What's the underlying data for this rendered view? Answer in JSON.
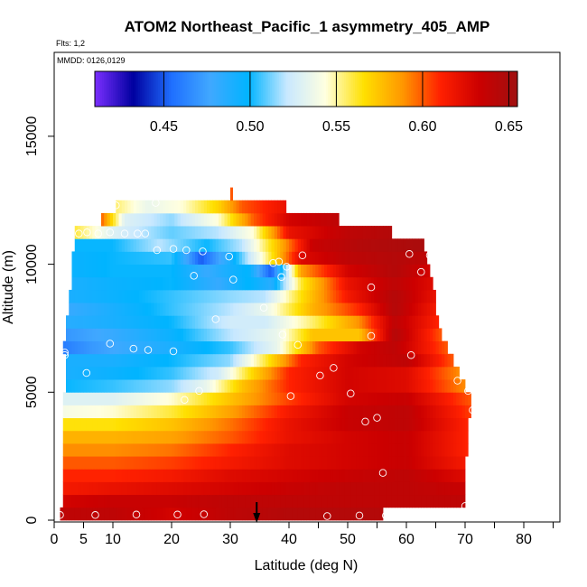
{
  "chart_data": {
    "type": "heatmap",
    "title": "ATOM2 Northeast_Pacific_1 asymmetry_405_AMP",
    "annotations": {
      "flights": "Flts: 1,2",
      "dates": "MMDD: 0126,0129"
    },
    "xlabel": "Latitude (deg N)",
    "ylabel": "Altitude (m)",
    "xlim": [
      0,
      85
    ],
    "ylim": [
      0,
      17500
    ],
    "x_ticks": [
      0,
      5,
      10,
      20,
      30,
      40,
      50,
      60,
      70,
      80
    ],
    "x_tick_labels": [
      "0",
      "5",
      "10",
      "20",
      "30",
      "40",
      "50",
      "60",
      "70",
      "80"
    ],
    "x_minor_ticks": [
      45,
      55,
      65,
      75,
      85
    ],
    "y_ticks": [
      0,
      5000,
      10000,
      15000
    ],
    "y_tick_labels": [
      "0",
      "5000",
      "10000",
      "15000"
    ],
    "colorbar": {
      "min": 0.41,
      "max": 0.655,
      "ticks": [
        0.45,
        0.5,
        0.55,
        0.6,
        0.65
      ],
      "tick_labels": [
        "0.45",
        "0.50",
        "0.55",
        "0.60",
        "0.65"
      ],
      "colors": [
        "#7b2fff",
        "#0000a0",
        "#1f6fff",
        "#40a8ff",
        "#00b4ff",
        "#c8e8ff",
        "#ffffe0",
        "#ffe000",
        "#ff9800",
        "#ff2000",
        "#cc0000",
        "#a01010"
      ],
      "colors_note": "dark purple -> dark blue -> blue -> light blue -> white -> yellow -> orange -> red -> dark red"
    },
    "marker": {
      "type": "arrow-down",
      "x": 34.5,
      "note": "black arrow at bottom"
    },
    "bands": [
      {
        "alt": 250,
        "lat_min": 1,
        "lat_max": 56,
        "lat": [
          1,
          10,
          20,
          30,
          40,
          50,
          56
        ],
        "val": [
          0.64,
          0.64,
          0.63,
          0.64,
          0.645,
          0.645,
          0.645
        ]
      },
      {
        "alt": 750,
        "lat_min": 1.5,
        "lat_max": 70,
        "lat": [
          1.5,
          10,
          20,
          30,
          40,
          50,
          60,
          70
        ],
        "val": [
          0.63,
          0.635,
          0.635,
          0.64,
          0.64,
          0.64,
          0.64,
          0.64
        ]
      },
      {
        "alt": 1250,
        "lat_min": 1.5,
        "lat_max": 70,
        "lat": [
          1.5,
          10,
          20,
          30,
          40,
          50,
          60,
          70
        ],
        "val": [
          0.615,
          0.62,
          0.625,
          0.63,
          0.635,
          0.64,
          0.64,
          0.635
        ]
      },
      {
        "alt": 1750,
        "lat_min": 1.5,
        "lat_max": 70,
        "lat": [
          1.5,
          10,
          20,
          30,
          40,
          50,
          60,
          70
        ],
        "val": [
          0.61,
          0.61,
          0.615,
          0.625,
          0.63,
          0.635,
          0.64,
          0.625
        ]
      },
      {
        "alt": 2250,
        "lat_min": 1.5,
        "lat_max": 70,
        "lat": [
          1.5,
          10,
          20,
          30,
          40,
          50,
          60,
          70
        ],
        "val": [
          0.6,
          0.6,
          0.605,
          0.615,
          0.625,
          0.63,
          0.635,
          0.615
        ]
      },
      {
        "alt": 2750,
        "lat_min": 1.5,
        "lat_max": 70.5,
        "lat": [
          1.5,
          10,
          20,
          30,
          40,
          50,
          60,
          70.5
        ],
        "val": [
          0.59,
          0.59,
          0.595,
          0.61,
          0.625,
          0.63,
          0.635,
          0.61
        ]
      },
      {
        "alt": 3250,
        "lat_min": 1.5,
        "lat_max": 70.5,
        "lat": [
          1.5,
          10,
          20,
          30,
          40,
          50,
          60,
          70.5
        ],
        "val": [
          0.58,
          0.58,
          0.585,
          0.6,
          0.62,
          0.63,
          0.635,
          0.61
        ]
      },
      {
        "alt": 3750,
        "lat_min": 1.5,
        "lat_max": 70.5,
        "lat": [
          1.5,
          10,
          20,
          30,
          40,
          50,
          60,
          70.5
        ],
        "val": [
          0.565,
          0.565,
          0.575,
          0.595,
          0.62,
          0.635,
          0.64,
          0.61
        ]
      },
      {
        "alt": 4250,
        "lat_min": 1.5,
        "lat_max": 71,
        "lat": [
          1.5,
          10,
          20,
          30,
          40,
          50,
          60,
          71
        ],
        "val": [
          0.54,
          0.545,
          0.56,
          0.585,
          0.615,
          0.635,
          0.64,
          0.605
        ]
      },
      {
        "alt": 4750,
        "lat_min": 1.5,
        "lat_max": 71,
        "lat": [
          1.5,
          10,
          20,
          30,
          40,
          50,
          60,
          71
        ],
        "val": [
          0.53,
          0.53,
          0.545,
          0.575,
          0.605,
          0.63,
          0.635,
          0.6
        ]
      },
      {
        "alt": 5250,
        "lat_min": 2,
        "lat_max": 70,
        "lat": [
          2,
          10,
          20,
          26,
          32,
          40,
          50,
          60,
          70
        ],
        "val": [
          0.5,
          0.505,
          0.515,
          0.535,
          0.575,
          0.61,
          0.63,
          0.625,
          0.59
        ]
      },
      {
        "alt": 5750,
        "lat_min": 2,
        "lat_max": 69,
        "lat": [
          2,
          10,
          20,
          28,
          34,
          40,
          50,
          60,
          69
        ],
        "val": [
          0.49,
          0.495,
          0.505,
          0.525,
          0.57,
          0.61,
          0.63,
          0.625,
          0.59
        ]
      },
      {
        "alt": 6250,
        "lat_min": 2,
        "lat_max": 68,
        "lat": [
          2,
          10,
          20,
          30,
          36,
          42,
          50,
          60,
          68
        ],
        "val": [
          0.49,
          0.49,
          0.5,
          0.515,
          0.56,
          0.61,
          0.63,
          0.64,
          0.6
        ]
      },
      {
        "alt": 6750,
        "lat_min": 1.5,
        "lat_max": 67,
        "lat": [
          1.5,
          6,
          12,
          20,
          30,
          38,
          45,
          52,
          58,
          67
        ],
        "val": [
          0.46,
          0.47,
          0.48,
          0.49,
          0.505,
          0.535,
          0.6,
          0.63,
          0.64,
          0.6
        ]
      },
      {
        "alt": 7250,
        "lat_min": 2,
        "lat_max": 66,
        "lat": [
          2,
          10,
          20,
          30,
          38,
          44,
          52,
          58,
          66
        ],
        "val": [
          0.47,
          0.48,
          0.495,
          0.52,
          0.535,
          0.575,
          0.575,
          0.645,
          0.6
        ]
      },
      {
        "alt": 7750,
        "lat_min": 2,
        "lat_max": 65.5,
        "lat": [
          2,
          10,
          20,
          30,
          36,
          44,
          52,
          58,
          65.5
        ],
        "val": [
          0.485,
          0.49,
          0.5,
          0.525,
          0.525,
          0.555,
          0.59,
          0.64,
          0.61
        ]
      },
      {
        "alt": 8250,
        "lat_min": 2.5,
        "lat_max": 65,
        "lat": [
          2.5,
          10,
          20,
          30,
          36,
          44,
          52,
          58,
          65
        ],
        "val": [
          0.48,
          0.49,
          0.505,
          0.52,
          0.535,
          0.58,
          0.61,
          0.645,
          0.615
        ]
      },
      {
        "alt": 8750,
        "lat_min": 2.5,
        "lat_max": 65,
        "lat": [
          2.5,
          10,
          20,
          30,
          36,
          42,
          50,
          58,
          65
        ],
        "val": [
          0.49,
          0.495,
          0.505,
          0.515,
          0.52,
          0.565,
          0.615,
          0.645,
          0.62
        ]
      },
      {
        "alt": 9250,
        "lat_min": 3,
        "lat_max": 64.5,
        "lat": [
          3,
          10,
          20,
          28,
          33,
          37,
          42,
          50,
          58,
          64.5
        ],
        "val": [
          0.49,
          0.495,
          0.5,
          0.48,
          0.5,
          0.485,
          0.56,
          0.62,
          0.64,
          0.625
        ]
      },
      {
        "alt": 9750,
        "lat_min": 3,
        "lat_max": 64,
        "lat": [
          3,
          10,
          20,
          26,
          33,
          37,
          42,
          50,
          58,
          64
        ],
        "val": [
          0.495,
          0.5,
          0.5,
          0.48,
          0.5,
          0.45,
          0.585,
          0.63,
          0.645,
          0.63
        ]
      },
      {
        "alt": 10250,
        "lat_min": 3,
        "lat_max": 63.5,
        "lat": [
          3,
          10,
          20,
          25,
          30,
          36,
          42,
          50,
          58,
          63.5
        ],
        "val": [
          0.495,
          0.5,
          0.505,
          0.45,
          0.49,
          0.55,
          0.625,
          0.64,
          0.645,
          0.64
        ]
      },
      {
        "alt": 10750,
        "lat_min": 3.5,
        "lat_max": 63,
        "lat": [
          3.5,
          10,
          18,
          26,
          32,
          38,
          44,
          52,
          63
        ],
        "val": [
          0.5,
          0.5,
          0.52,
          0.5,
          0.52,
          0.575,
          0.635,
          0.645,
          0.65
        ]
      },
      {
        "alt": 11250,
        "lat_min": 3.5,
        "lat_max": 57.5,
        "lat": [
          3.5,
          10,
          20,
          28,
          34,
          40,
          50,
          57.5
        ],
        "val": [
          0.56,
          0.53,
          0.51,
          0.52,
          0.545,
          0.62,
          0.64,
          0.645
        ]
      },
      {
        "alt": 11750,
        "lat_min": 8,
        "lat_max": 48.5,
        "lat": [
          8,
          12,
          20,
          28,
          34,
          40,
          48.5
        ],
        "val": [
          0.6,
          0.53,
          0.515,
          0.545,
          0.6,
          0.63,
          0.64
        ]
      },
      {
        "alt": 12250,
        "lat_min": 10.5,
        "lat_max": 39.5,
        "lat": [
          10.5,
          16,
          22,
          28,
          32,
          39.5
        ],
        "val": [
          0.555,
          0.535,
          0.545,
          0.57,
          0.6,
          0.62
        ]
      },
      {
        "alt": 12750,
        "lat_min": 30,
        "lat_max": 30.4,
        "lat": [
          30,
          30.4
        ],
        "val": [
          0.6,
          0.6
        ]
      }
    ],
    "sample_points": [
      [
        1,
        200
      ],
      [
        7,
        200
      ],
      [
        14,
        220
      ],
      [
        21,
        220
      ],
      [
        25.5,
        230
      ],
      [
        46.5,
        160
      ],
      [
        52,
        180
      ],
      [
        56.5,
        180
      ],
      [
        70,
        550
      ],
      [
        56,
        1850
      ],
      [
        53,
        3850
      ],
      [
        55,
        4000
      ],
      [
        71.3,
        4300
      ],
      [
        50.5,
        4950
      ],
      [
        40.3,
        4850
      ],
      [
        22.2,
        4700
      ],
      [
        24.7,
        5050
      ],
      [
        70.5,
        5050
      ],
      [
        68.7,
        5450
      ],
      [
        45.3,
        5650
      ],
      [
        47.6,
        5950
      ],
      [
        5.5,
        5750
      ],
      [
        1.8,
        6450
      ],
      [
        1.8,
        6550
      ],
      [
        9.5,
        6900
      ],
      [
        13.5,
        6700
      ],
      [
        16,
        6650
      ],
      [
        20.3,
        6600
      ],
      [
        60.8,
        6450
      ],
      [
        41.5,
        6850
      ],
      [
        54,
        7200
      ],
      [
        38.9,
        7250
      ],
      [
        27.5,
        7850
      ],
      [
        35.7,
        8300
      ],
      [
        30.5,
        9400
      ],
      [
        23.8,
        9550
      ],
      [
        38.7,
        9500
      ],
      [
        39.6,
        9900
      ],
      [
        37.3,
        10050
      ],
      [
        38.3,
        10100
      ],
      [
        54,
        9100
      ],
      [
        62.5,
        9700
      ],
      [
        29.8,
        10300
      ],
      [
        25.3,
        10500
      ],
      [
        22.5,
        10550
      ],
      [
        20.3,
        10600
      ],
      [
        17.5,
        10550
      ],
      [
        42.3,
        10350
      ],
      [
        60.5,
        10400
      ],
      [
        64,
        10350
      ],
      [
        66.6,
        10950
      ],
      [
        4.2,
        11200
      ],
      [
        5.6,
        11250
      ],
      [
        7.5,
        11200
      ],
      [
        9.5,
        11250
      ],
      [
        12,
        11200
      ],
      [
        14.2,
        11200
      ],
      [
        15.5,
        11200
      ],
      [
        17.3,
        12400
      ],
      [
        10.5,
        12300
      ]
    ]
  }
}
